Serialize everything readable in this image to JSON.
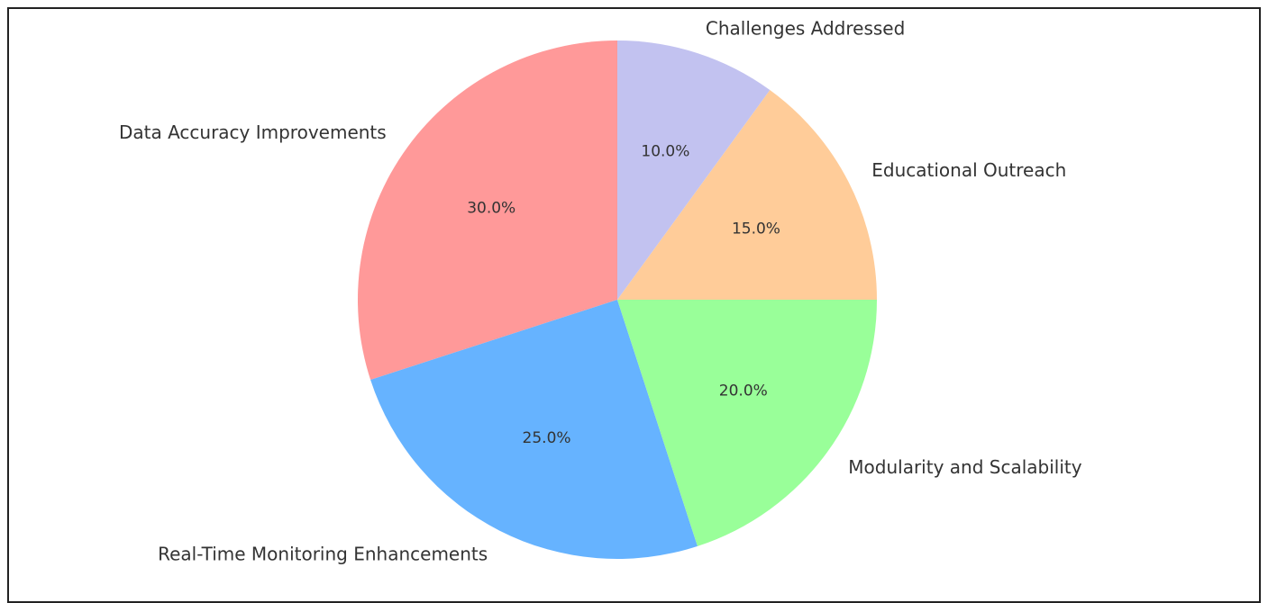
{
  "chart_data": {
    "type": "pie",
    "title": "",
    "start_angle": 90,
    "direction": "counterclockwise",
    "slices": [
      {
        "label": "Data Accuracy Improvements",
        "value": 30,
        "pct_text": "30.0%",
        "color": "#ff9999"
      },
      {
        "label": "Real-Time Monitoring Enhancements",
        "value": 25,
        "pct_text": "25.0%",
        "color": "#66b3ff"
      },
      {
        "label": "Modularity and Scalability",
        "value": 20,
        "pct_text": "20.0%",
        "color": "#99ff99"
      },
      {
        "label": "Educational Outreach",
        "value": 15,
        "pct_text": "15.0%",
        "color": "#ffcc99"
      },
      {
        "label": "Challenges Addressed",
        "value": 10,
        "pct_text": "10.0%",
        "color": "#c2c2f0"
      }
    ]
  }
}
